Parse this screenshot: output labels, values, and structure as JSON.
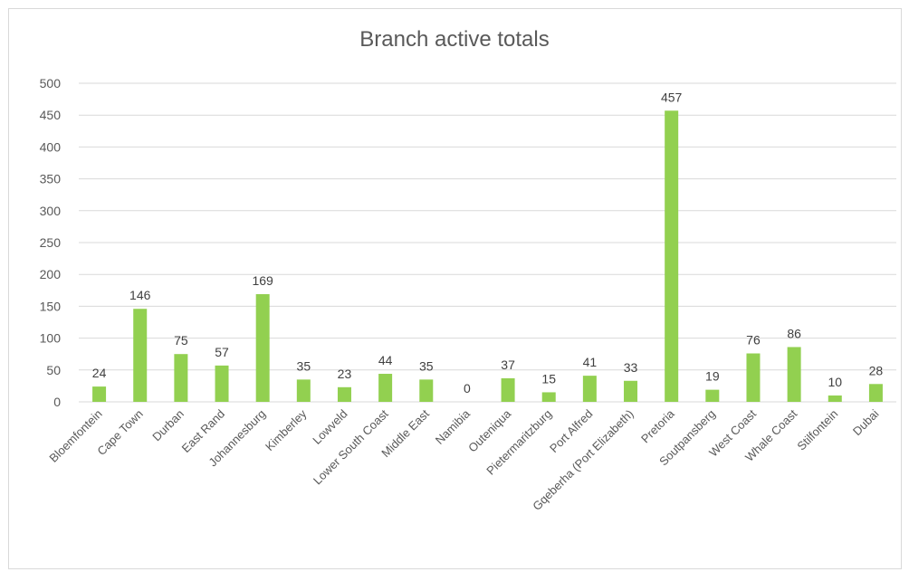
{
  "chart_data": {
    "type": "bar",
    "title": "Branch active totals",
    "xlabel": "",
    "ylabel": "",
    "ylim": [
      0,
      500
    ],
    "yticks": [
      0,
      50,
      100,
      150,
      200,
      250,
      300,
      350,
      400,
      450,
      500
    ],
    "grid": true,
    "bar_color": "#92d050",
    "categories": [
      "Bloemfontein",
      "Cape Town",
      "Durban",
      "East Rand",
      "Johannesburg",
      "Kimberley",
      "Lowveld",
      "Lower South Coast",
      "Middle East",
      "Namibia",
      "Outeniqua",
      "Pietermaritzburg",
      "Port Alfred",
      "Gqeberha (Port Elizabeth)",
      "Pretoria",
      "Soutpansberg",
      "West Coast",
      "Whale Coast",
      "Stilfontein",
      "Dubai"
    ],
    "values": [
      24,
      146,
      75,
      57,
      169,
      35,
      23,
      44,
      35,
      0,
      37,
      15,
      41,
      33,
      457,
      19,
      76,
      86,
      10,
      28
    ]
  }
}
